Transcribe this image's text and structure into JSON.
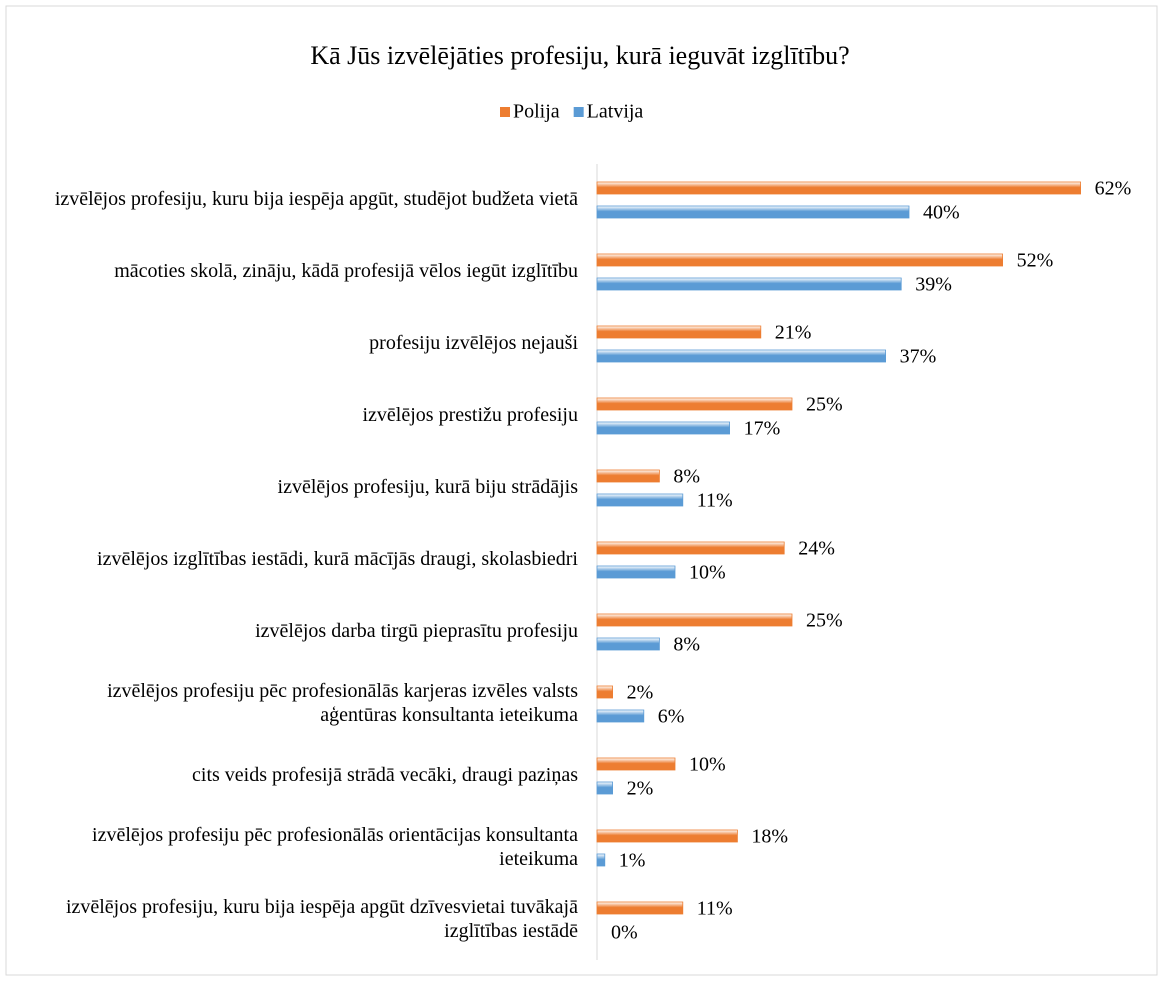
{
  "chart_data": {
    "type": "bar",
    "orientation": "horizontal",
    "title": "Kā Jūs izvēlējāties profesiju, kurā ieguvāt izglītību?",
    "categories": [
      "izvēlējos profesiju, kuru bija iespēja apgūt, studējot budžeta vietā",
      "mācoties skolā, zināju, kādā profesijā vēlos iegūt izglītību",
      "profesiju izvēlējos nejauši",
      "izvēlējos prestižu profesiju",
      "izvēlējos profesiju, kurā biju strādājis",
      "izvēlējos izglītības iestādi, kurā mācījās draugi, skolasbiedri",
      "izvēlējos darba tirgū pieprasītu profesiju",
      "izvēlējos profesiju pēc profesionālās karjeras izvēles valsts aģentūras konsultanta ieteikuma",
      "cits veids profesijā strādā vecāki, draugi paziņas",
      "izvēlējos profesiju pēc profesionālās orientācijas konsultanta ieteikuma",
      "izvēlējos profesiju, kuru bija iespēja apgūt dzīvesvietai tuvākajā izglītības iestādē"
    ],
    "series": [
      {
        "name": "Polija",
        "color": "#ed7d31",
        "values": [
          62,
          52,
          21,
          25,
          8,
          24,
          25,
          2,
          10,
          18,
          11
        ],
        "value_labels": [
          "62%",
          "52%",
          "21%",
          "25%",
          "8%",
          "24%",
          "25%",
          "2%",
          "10%",
          "18%",
          "11%"
        ]
      },
      {
        "name": "Latvija",
        "color": "#5b9bd5",
        "values": [
          40,
          39,
          37,
          17,
          11,
          10,
          8,
          6,
          2,
          1,
          0
        ],
        "value_labels": [
          "40%",
          "39%",
          "37%",
          "17%",
          "11%",
          "10%",
          "8%",
          "6%",
          "2%",
          "1%",
          "0%"
        ]
      }
    ],
    "legend": "top"
  }
}
